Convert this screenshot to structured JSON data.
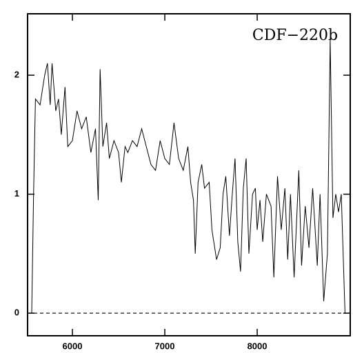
{
  "chart_data": {
    "type": "line",
    "annotation": "CDF−220b",
    "x": [
      5560,
      5580,
      5600,
      5650,
      5700,
      5730,
      5760,
      5780,
      5820,
      5850,
      5880,
      5920,
      5950,
      6000,
      6050,
      6100,
      6150,
      6200,
      6250,
      6280,
      6300,
      6330,
      6370,
      6400,
      6450,
      6500,
      6530,
      6570,
      6600,
      6650,
      6700,
      6750,
      6800,
      6850,
      6900,
      6950,
      7000,
      7050,
      7100,
      7150,
      7200,
      7250,
      7280,
      7310,
      7330,
      7360,
      7400,
      7430,
      7480,
      7510,
      7560,
      7600,
      7630,
      7660,
      7700,
      7730,
      7760,
      7790,
      7820,
      7850,
      7880,
      7910,
      7950,
      7980,
      8000,
      8030,
      8060,
      8100,
      8150,
      8180,
      8220,
      8260,
      8300,
      8330,
      8360,
      8400,
      8450,
      8480,
      8520,
      8560,
      8600,
      8650,
      8680,
      8720,
      8760,
      8790,
      8820,
      8850,
      8880,
      8910,
      8950
    ],
    "series": [
      {
        "color": "#000000",
        "values": [
          0.0,
          1.0,
          1.8,
          1.75,
          2.0,
          2.1,
          1.75,
          2.1,
          1.7,
          1.8,
          1.5,
          1.9,
          1.4,
          1.45,
          1.7,
          1.55,
          1.65,
          1.35,
          1.55,
          0.95,
          2.05,
          1.4,
          1.6,
          1.3,
          1.45,
          1.35,
          1.1,
          1.4,
          1.35,
          1.45,
          1.4,
          1.55,
          1.4,
          1.25,
          1.2,
          1.45,
          1.3,
          1.25,
          1.6,
          1.3,
          1.2,
          1.4,
          1.1,
          0.95,
          0.5,
          1.1,
          1.25,
          1.05,
          1.1,
          0.7,
          0.45,
          0.55,
          1.0,
          1.15,
          0.65,
          1.0,
          1.3,
          0.6,
          0.35,
          1.05,
          1.3,
          0.5,
          1.0,
          1.05,
          0.7,
          0.95,
          0.6,
          1.0,
          0.9,
          0.3,
          1.15,
          0.7,
          1.05,
          0.45,
          1.0,
          0.3,
          1.2,
          0.4,
          0.9,
          0.55,
          1.05,
          0.4,
          1.0,
          0.1,
          0.5,
          2.3,
          0.8,
          1.0,
          0.85,
          1.0,
          0.0
        ]
      }
    ],
    "xlim": [
      5515,
      9007
    ],
    "xticks": [
      6000,
      7000,
      8000
    ],
    "ylim": [
      -0.19,
      2.516
    ],
    "yticks": [
      0,
      1,
      2
    ],
    "reference_line": 0
  }
}
